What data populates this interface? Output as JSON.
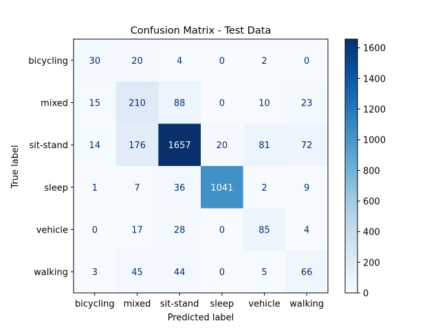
{
  "chart_data": {
    "type": "heatmap",
    "title": "Confusion Matrix - Test Data",
    "xlabel": "Predicted label",
    "ylabel": "True label",
    "x_categories": [
      "bicycling",
      "mixed",
      "sit-stand",
      "sleep",
      "vehicle",
      "walking"
    ],
    "y_categories": [
      "bicycling",
      "mixed",
      "sit-stand",
      "sleep",
      "vehicle",
      "walking"
    ],
    "values": [
      [
        30,
        20,
        4,
        0,
        2,
        0
      ],
      [
        15,
        210,
        88,
        0,
        10,
        23
      ],
      [
        14,
        176,
        1657,
        20,
        81,
        72
      ],
      [
        1,
        7,
        36,
        1041,
        2,
        9
      ],
      [
        0,
        17,
        28,
        0,
        85,
        4
      ],
      [
        3,
        45,
        44,
        0,
        5,
        66
      ]
    ],
    "colormap": "Blues",
    "vmin": 0,
    "vmax": 1657,
    "colorbar_ticks": [
      0,
      200,
      400,
      600,
      800,
      1000,
      1200,
      1400,
      1600
    ],
    "grid": false,
    "legend": "colorbar-right"
  }
}
